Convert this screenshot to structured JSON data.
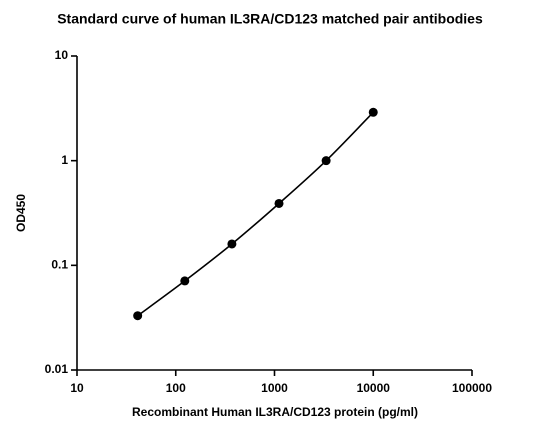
{
  "chart_data": {
    "type": "scatter",
    "title": "Standard curve of human  IL3RA/CD123 matched pair antibodies",
    "x_label": "Recombinant Human IL3RA/CD123 protein (pg/ml)",
    "y_label": "OD450",
    "x_scale": "log",
    "y_scale": "log",
    "xlim": [
      10,
      100000
    ],
    "xticks": [
      10,
      100,
      1000,
      10000,
      100000
    ],
    "ylim": [
      0.01,
      10
    ],
    "yticks": [
      0.01,
      0.1,
      1,
      10
    ],
    "color": "#000000",
    "x": [
      41.15,
      123.5,
      370.4,
      1111,
      3333,
      10000
    ],
    "values": [
      0.033,
      0.071,
      0.16,
      0.39,
      1.0,
      2.9
    ]
  }
}
